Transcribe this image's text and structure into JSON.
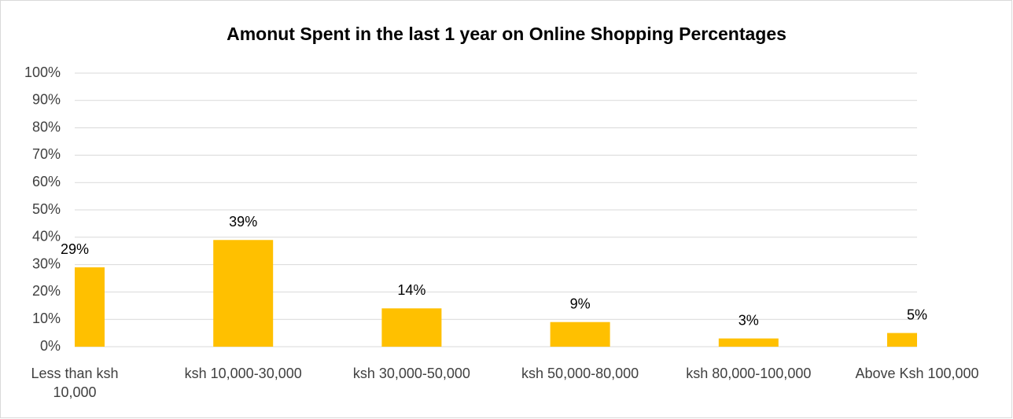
{
  "chart_data": {
    "type": "bar",
    "title": "Amonut Spent in the last 1 year on Online Shopping Percentages",
    "categories": [
      "Less than ksh 10,000",
      "ksh 10,000-30,000",
      "ksh 30,000-50,000",
      "ksh 50,000-80,000",
      "ksh 80,000-100,000",
      "Above Ksh 100,000"
    ],
    "values": [
      29,
      39,
      14,
      9,
      3,
      5
    ],
    "value_labels": [
      "29%",
      "39%",
      "14%",
      "9%",
      "3%",
      "5%"
    ],
    "color": "#ffc000",
    "ylim": [
      0,
      100
    ],
    "yticks": [
      {
        "value": 0,
        "label": "0%"
      },
      {
        "value": 10,
        "label": "10%"
      },
      {
        "value": 20,
        "label": "20%"
      },
      {
        "value": 30,
        "label": "30%"
      },
      {
        "value": 40,
        "label": "40%"
      },
      {
        "value": 50,
        "label": "50%"
      },
      {
        "value": 60,
        "label": "60%"
      },
      {
        "value": 70,
        "label": "70%"
      },
      {
        "value": 80,
        "label": "80%"
      },
      {
        "value": 90,
        "label": "90%"
      },
      {
        "value": 100,
        "label": "100%"
      }
    ],
    "grid": true
  }
}
